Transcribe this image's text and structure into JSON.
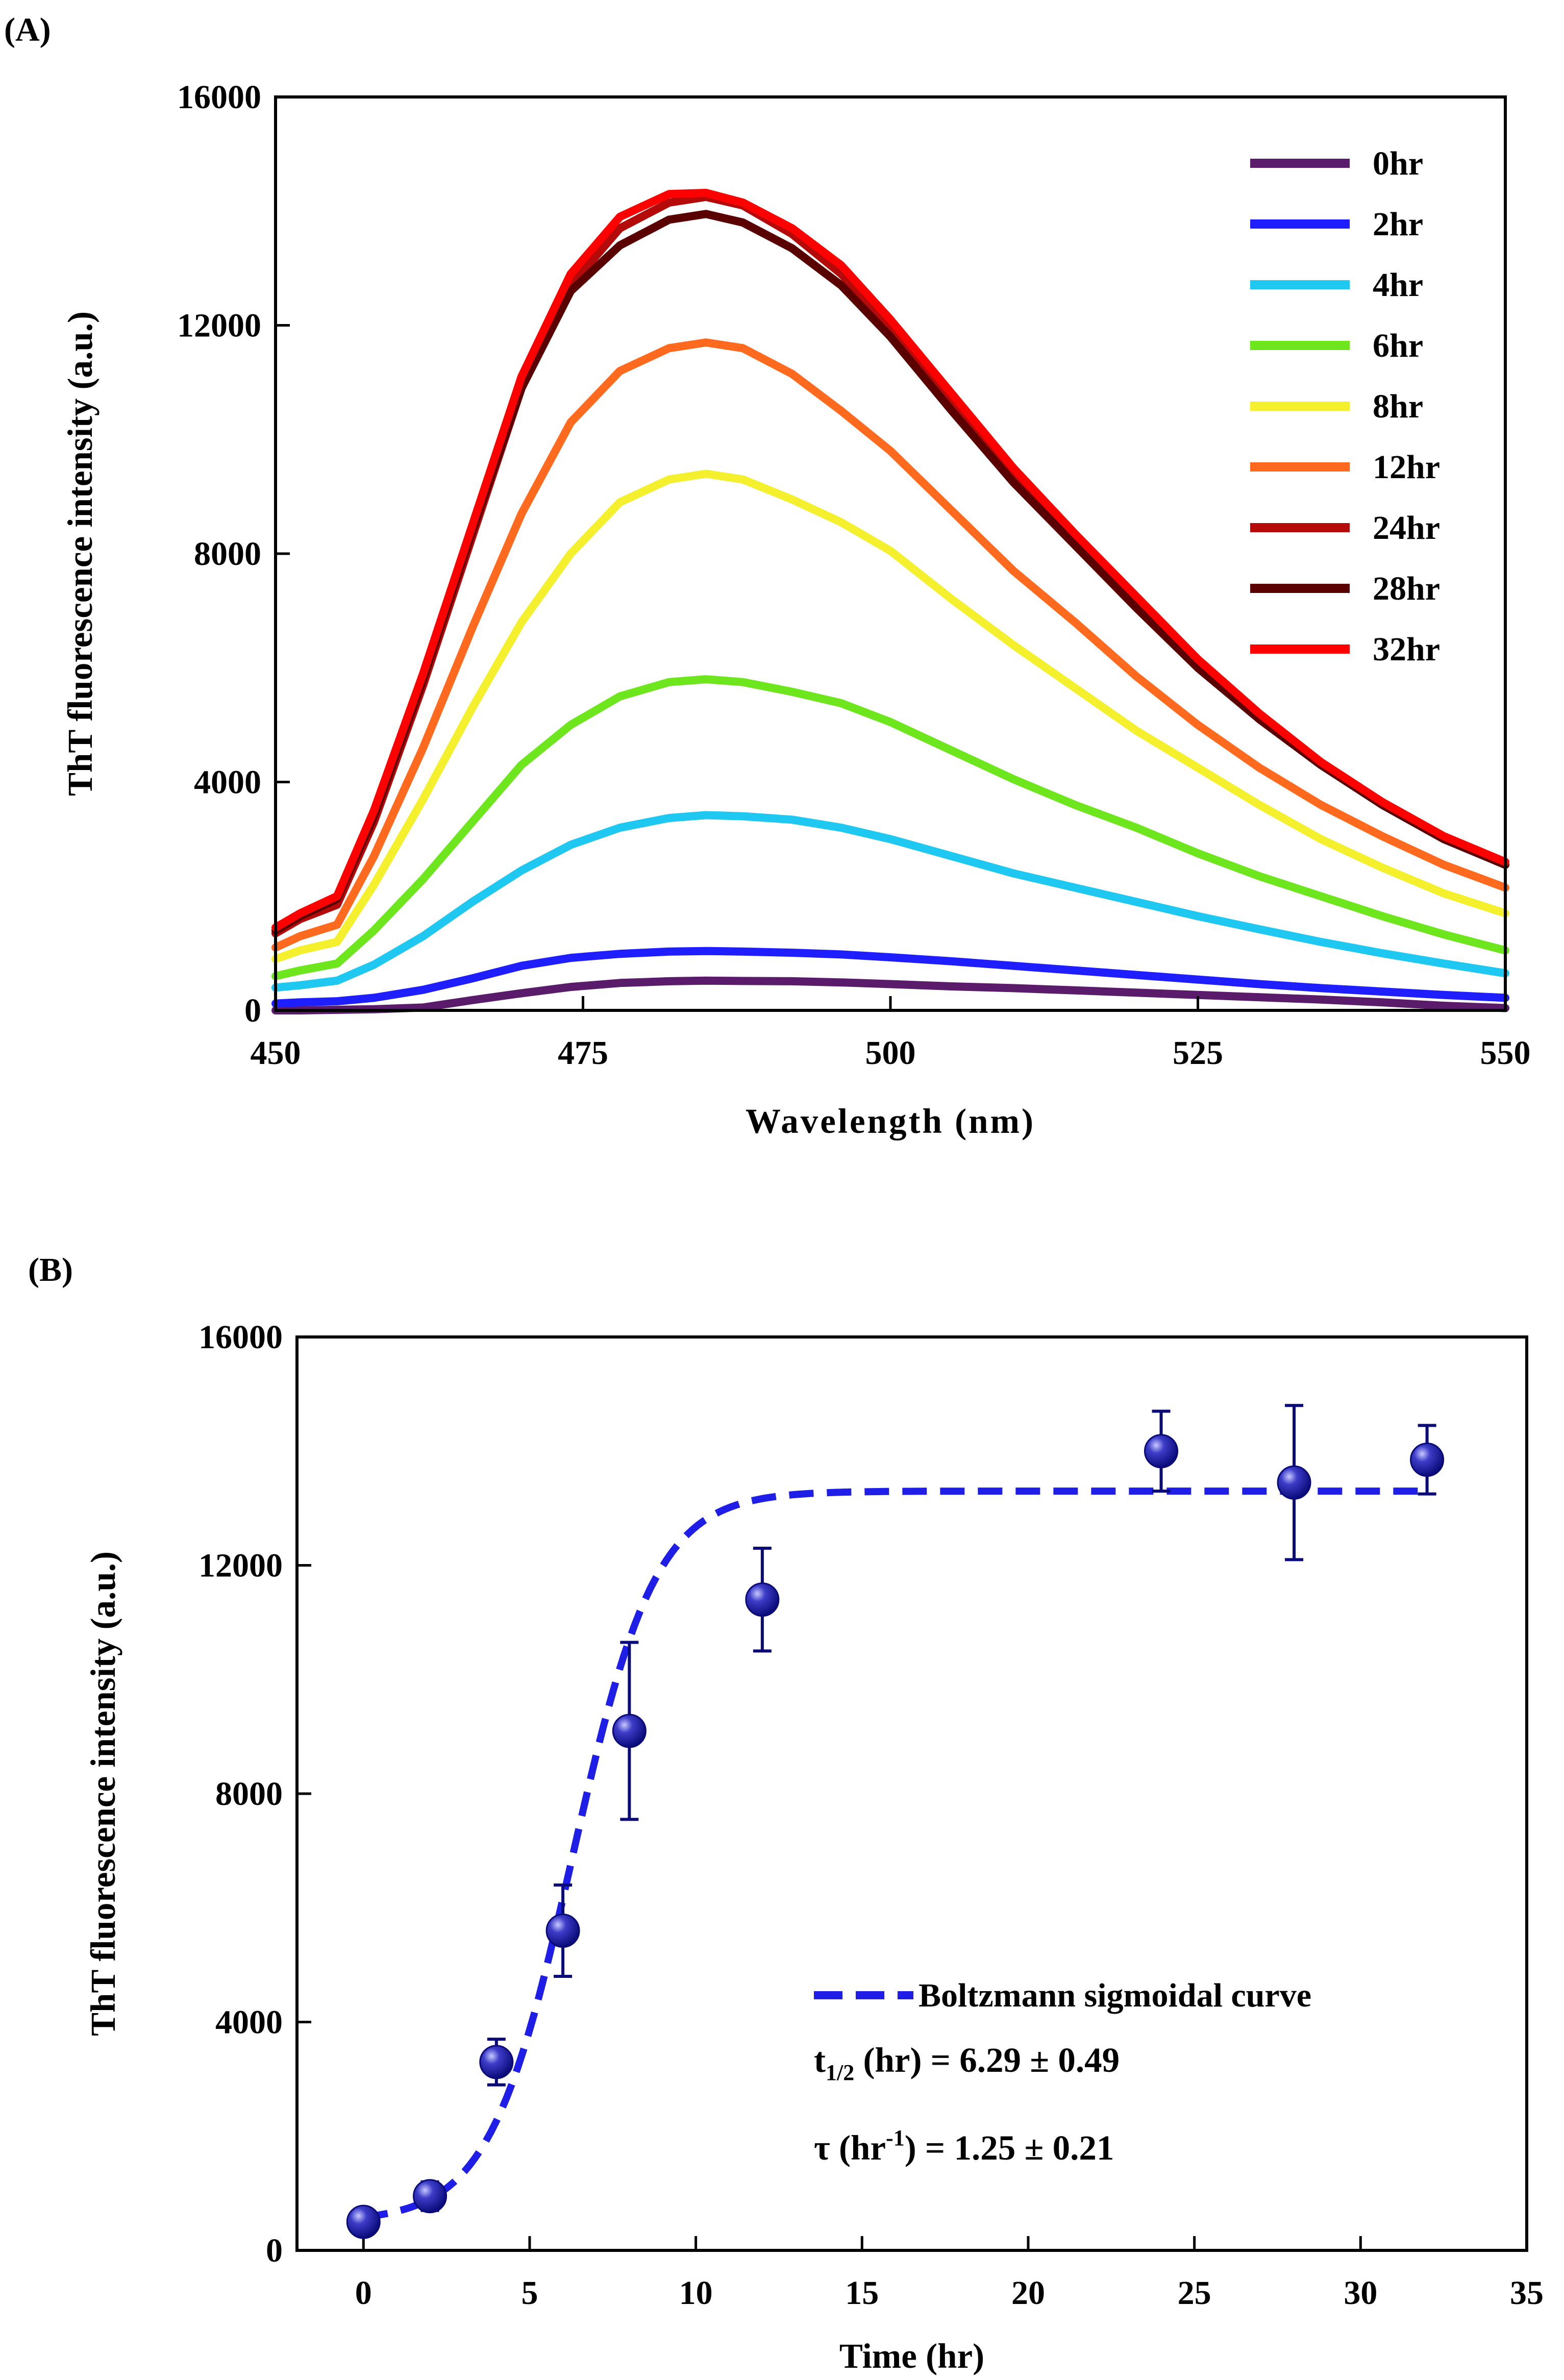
{
  "chart_data": [
    {
      "panel_label": "(A)",
      "type": "line",
      "xlabel": "Wavelength (nm)",
      "ylabel": "ThT fluorescence  intensity (a.u.)",
      "xlim": [
        450,
        550
      ],
      "ylim": [
        0,
        16000
      ],
      "xticks": [
        "450",
        "475",
        "500",
        "525",
        "550"
      ],
      "yticks": [
        "0",
        "4000",
        "8000",
        "12000",
        "16000"
      ],
      "legend_position": "top-right",
      "x": [
        450,
        452,
        455,
        458,
        462,
        466,
        470,
        474,
        478,
        482,
        485,
        488,
        492,
        496,
        500,
        505,
        510,
        515,
        520,
        525,
        530,
        535,
        540,
        545,
        550
      ],
      "series": [
        {
          "name": "0hr",
          "color": "#5B1B6B",
          "values": [
            0,
            0,
            10,
            20,
            50,
            180,
            300,
            410,
            480,
            510,
            520,
            515,
            510,
            490,
            460,
            420,
            390,
            350,
            310,
            270,
            230,
            190,
            140,
            80,
            40
          ]
        },
        {
          "name": "2hr",
          "color": "#1E1EFF",
          "values": [
            120,
            140,
            160,
            220,
            360,
            560,
            780,
            920,
            990,
            1030,
            1040,
            1030,
            1010,
            980,
            930,
            860,
            780,
            700,
            620,
            540,
            460,
            390,
            330,
            270,
            220
          ]
        },
        {
          "name": "4hr",
          "color": "#1EC8F0",
          "values": [
            400,
            440,
            520,
            800,
            1300,
            1900,
            2450,
            2900,
            3200,
            3370,
            3420,
            3400,
            3340,
            3200,
            3000,
            2700,
            2400,
            2150,
            1900,
            1650,
            1420,
            1200,
            1000,
            820,
            650
          ]
        },
        {
          "name": "6hr",
          "color": "#6EE61E",
          "values": [
            600,
            700,
            820,
            1400,
            2300,
            3300,
            4300,
            5000,
            5500,
            5750,
            5800,
            5750,
            5580,
            5380,
            5050,
            4550,
            4050,
            3600,
            3200,
            2750,
            2350,
            2000,
            1650,
            1330,
            1050
          ]
        },
        {
          "name": "8hr",
          "color": "#F5F02D",
          "values": [
            900,
            1050,
            1200,
            2200,
            3700,
            5300,
            6800,
            8000,
            8900,
            9300,
            9400,
            9300,
            8950,
            8550,
            8050,
            7200,
            6400,
            5650,
            4900,
            4250,
            3600,
            3000,
            2500,
            2050,
            1700
          ]
        },
        {
          "name": "12hr",
          "color": "#FF6A1E",
          "values": [
            1100,
            1300,
            1500,
            2700,
            4600,
            6700,
            8700,
            10300,
            11200,
            11600,
            11700,
            11600,
            11150,
            10500,
            9800,
            8750,
            7700,
            6800,
            5850,
            5000,
            4250,
            3600,
            3050,
            2550,
            2150
          ]
        },
        {
          "name": "24hr",
          "color": "#B40A0A",
          "values": [
            1350,
            1600,
            1850,
            3300,
            5700,
            8300,
            10900,
            12700,
            13700,
            14150,
            14250,
            14100,
            13600,
            12900,
            11950,
            10650,
            9350,
            8250,
            7150,
            6050,
            5100,
            4300,
            3600,
            3000,
            2550
          ]
        },
        {
          "name": "28hr",
          "color": "#5A0000",
          "values": [
            1400,
            1650,
            1950,
            3400,
            5800,
            8400,
            10900,
            12600,
            13400,
            13850,
            13950,
            13800,
            13350,
            12700,
            11800,
            10500,
            9250,
            8150,
            7050,
            6000,
            5100,
            4300,
            3600,
            3000,
            2550
          ]
        },
        {
          "name": "32hr",
          "color": "#FF0000",
          "values": [
            1450,
            1700,
            2000,
            3500,
            5900,
            8500,
            11100,
            12900,
            13900,
            14300,
            14320,
            14150,
            13700,
            13050,
            12100,
            10800,
            9500,
            8350,
            7250,
            6150,
            5200,
            4350,
            3650,
            3050,
            2600
          ]
        }
      ]
    },
    {
      "panel_label": "(B)",
      "type": "scatter",
      "xlabel": "Time (hr)",
      "ylabel": "ThT fluorescence  intensity (a.u.)",
      "xlim": [
        -2,
        35
      ],
      "ylim": [
        0,
        16000
      ],
      "xticks": [
        "0",
        "5",
        "10",
        "15",
        "20",
        "25",
        "30",
        "35"
      ],
      "yticks": [
        "0",
        "4000",
        "8000",
        "12000",
        "16000"
      ],
      "legend_position": "bottom-right",
      "marker_color": "#0A0A78",
      "points": {
        "x": [
          0,
          2,
          4,
          6,
          8,
          12,
          24,
          28,
          32
        ],
        "y": [
          500,
          950,
          3300,
          5600,
          9100,
          11400,
          14000,
          13450,
          13850
        ],
        "error": [
          150,
          250,
          400,
          800,
          1550,
          900,
          700,
          1350,
          600
        ]
      },
      "fit": {
        "name": "Boltzmann sigmoidal curve",
        "color": "#1E1EE6",
        "model": "y = A2 + (A1 - A2) / (1 + exp((x - t_half) / tau))",
        "A1": 500,
        "A2": 13300,
        "t_half": 6.29,
        "tau": 1.25,
        "x_range": [
          0,
          32
        ]
      },
      "annotations": {
        "t_half": {
          "prefix": "t",
          "sub": "1/2",
          "suffix": " (hr) = 6.29 ±  0.49"
        },
        "tau": {
          "prefix": "τ  (hr",
          "sup": "-1",
          "suffix": ") = 1.25 ±  0.21"
        }
      }
    }
  ]
}
